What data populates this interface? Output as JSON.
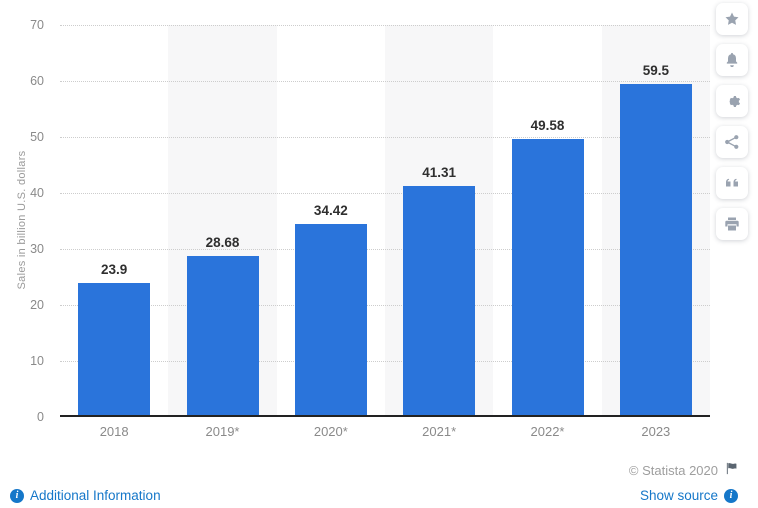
{
  "chart_data": {
    "type": "bar",
    "categories": [
      "2018",
      "2019*",
      "2020*",
      "2021*",
      "2022*",
      "2023"
    ],
    "values": [
      23.9,
      28.68,
      34.42,
      41.31,
      49.58,
      59.5
    ],
    "value_labels": [
      "23.9",
      "28.68",
      "34.42",
      "41.31",
      "49.58",
      "59.5"
    ],
    "title": "",
    "xlabel": "",
    "ylabel": "Sales in billion U.S. dollars",
    "ylim": [
      0,
      70
    ],
    "yticks": [
      0,
      10,
      20,
      30,
      40,
      50,
      60,
      70
    ],
    "grid": "horizontal-dotted",
    "legend": "none",
    "bar_color": "#2a74db",
    "striped_columns": "alternating, stripes behind 2019*, 2021*, 2023"
  },
  "sidebar": {
    "icons": [
      {
        "name": "star",
        "label": "Favorite"
      },
      {
        "name": "bell",
        "label": "Notifications"
      },
      {
        "name": "gear",
        "label": "Settings"
      },
      {
        "name": "share",
        "label": "Share"
      },
      {
        "name": "quote",
        "label": "Cite"
      },
      {
        "name": "printer",
        "label": "Print"
      }
    ]
  },
  "footer": {
    "copyright": "© Statista 2020",
    "additional_information_label": "Additional Information",
    "show_source_label": "Show source",
    "info_icon_glyph": "i"
  },
  "colors": {
    "bar": "#2a74db",
    "link_blue": "#1577c9",
    "stripe": "#f7f7f8",
    "gridline": "#cdcdcd",
    "axis_text": "#8a8a8a",
    "value_label": "#2f2f2f",
    "baseline": "#222222"
  }
}
